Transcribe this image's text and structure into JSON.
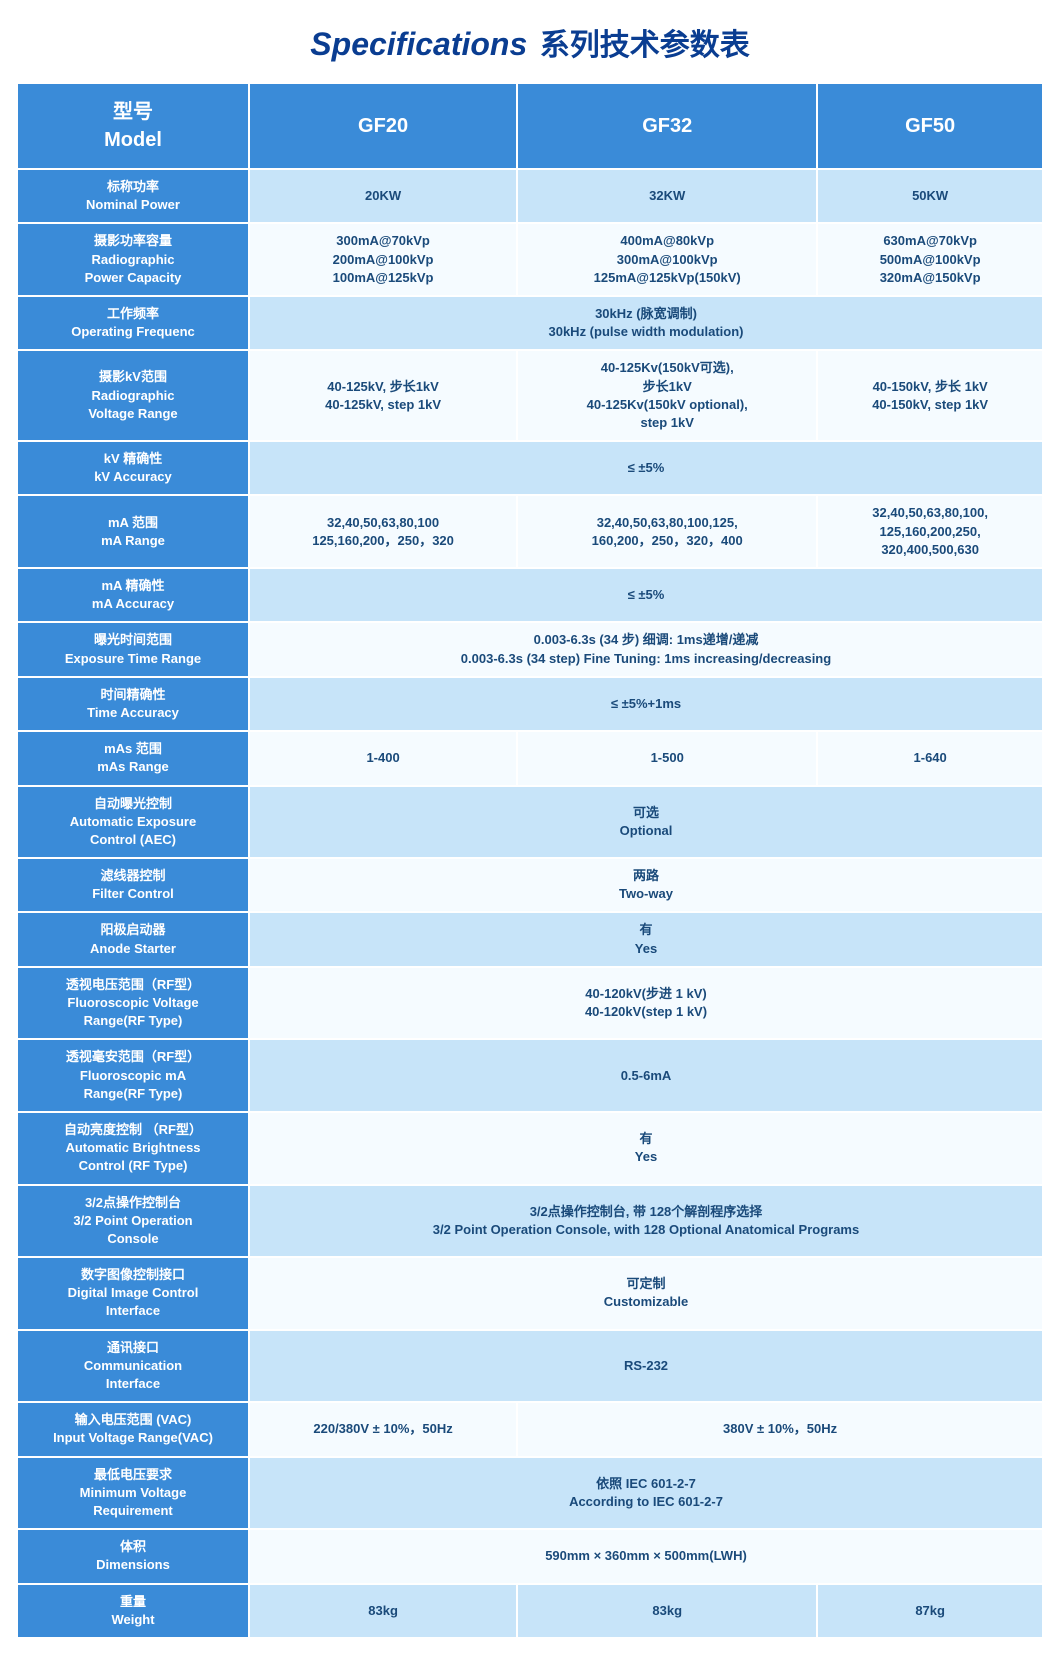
{
  "title_en": "Specifications",
  "title_cn": "系列技术参数表",
  "colors": {
    "header_bg": "#3a8bd8",
    "cell_light": "#c7e4f9",
    "cell_white": "#f5fbff",
    "text_dark": "#1a4a7a",
    "title_color": "#0a3d91"
  },
  "header": {
    "model_label": "型号\nModel",
    "col1": "GF20",
    "col2": "GF32",
    "col3": "GF50"
  },
  "rows": [
    {
      "label": "标称功率\nNominal Power",
      "style": "light",
      "cells": [
        "20KW",
        "32KW",
        "50KW"
      ]
    },
    {
      "label": "摄影功率容量\nRadiographic\nPower Capacity",
      "style": "white",
      "cells": [
        "300mA@70kVp\n200mA@100kVp\n100mA@125kVp",
        "400mA@80kVp\n300mA@100kVp\n125mA@125kVp(150kV)",
        "630mA@70kVp\n500mA@100kVp\n320mA@150kVp"
      ]
    },
    {
      "label": "工作频率\nOperating Frequenc",
      "style": "light",
      "span": 3,
      "cells": [
        "30kHz (脉宽调制)\n30kHz (pulse width modulation)"
      ]
    },
    {
      "label": "摄影kV范围\nRadiographic\nVoltage Range",
      "style": "white",
      "cells": [
        "40-125kV, 步长1kV\n40-125kV, step 1kV",
        "40-125Kv(150kV可选),\n步长1kV\n40-125Kv(150kV optional),\nstep 1kV",
        "40-150kV, 步长 1kV\n40-150kV, step 1kV"
      ]
    },
    {
      "label": "kV 精确性\nkV Accuracy",
      "style": "light",
      "span": 3,
      "cells": [
        "≤ ±5%"
      ]
    },
    {
      "label": "mA 范围\nmA Range",
      "style": "white",
      "cells": [
        "32,40,50,63,80,100\n125,160,200，250，320",
        "32,40,50,63,80,100,125,\n160,200，250，320，400",
        "32,40,50,63,80,100,\n125,160,200,250,\n320,400,500,630"
      ]
    },
    {
      "label": "mA 精确性\nmA Accuracy",
      "style": "light",
      "span": 3,
      "cells": [
        "≤ ±5%"
      ]
    },
    {
      "label": "曝光时间范围\nExposure Time Range",
      "style": "white",
      "span": 3,
      "cells": [
        "0.003-6.3s (34 步) 细调: 1ms递增/递减\n0.003-6.3s (34 step) Fine Tuning: 1ms increasing/decreasing"
      ]
    },
    {
      "label": "时间精确性\nTime Accuracy",
      "style": "light",
      "span": 3,
      "cells": [
        "≤ ±5%+1ms"
      ]
    },
    {
      "label": "mAs 范围\nmAs Range",
      "style": "white",
      "cells": [
        "1-400",
        "1-500",
        "1-640"
      ]
    },
    {
      "label": "自动曝光控制\nAutomatic Exposure\nControl (AEC)",
      "style": "light",
      "span": 3,
      "cells": [
        "可选\nOptional"
      ]
    },
    {
      "label": "滤线器控制\nFilter Control",
      "style": "white",
      "span": 3,
      "cells": [
        "两路\nTwo-way"
      ]
    },
    {
      "label": "阳极启动器\nAnode Starter",
      "style": "light",
      "span": 3,
      "cells": [
        "有\nYes"
      ]
    },
    {
      "label": "透视电压范围（RF型）\nFluoroscopic Voltage\nRange(RF Type)",
      "style": "white",
      "span": 3,
      "cells": [
        "40-120kV(步进 1 kV)\n40-120kV(step 1 kV)"
      ]
    },
    {
      "label": "透视毫安范围（RF型）\nFluoroscopic mA\nRange(RF Type)",
      "style": "light",
      "span": 3,
      "cells": [
        "0.5-6mA"
      ]
    },
    {
      "label": "自动亮度控制 （RF型）\nAutomatic Brightness\nControl (RF Type)",
      "style": "white",
      "span": 3,
      "cells": [
        "有\nYes"
      ]
    },
    {
      "label": "3/2点操作控制台\n3/2 Point Operation\nConsole",
      "style": "light",
      "span": 3,
      "cells": [
        "3/2点操作控制台, 带 128个解剖程序选择\n3/2 Point Operation Console, with 128 Optional Anatomical Programs"
      ]
    },
    {
      "label": "数字图像控制接口\nDigital Image Control\nInterface",
      "style": "white",
      "span": 3,
      "cells": [
        "可定制\nCustomizable"
      ]
    },
    {
      "label": "通讯接口\nCommunication\nInterface",
      "style": "light",
      "span": 3,
      "cells": [
        "RS-232"
      ]
    },
    {
      "label": "输入电压范围 (VAC)\nInput Voltage Range(VAC)",
      "style": "white",
      "spanSplit": [
        1,
        2
      ],
      "cells": [
        "220/380V ± 10%，50Hz",
        "380V ± 10%，50Hz"
      ]
    },
    {
      "label": "最低电压要求\nMinimum Voltage\nRequirement",
      "style": "light",
      "span": 3,
      "cells": [
        "依照 IEC 601-2-7\nAccording to IEC 601-2-7"
      ]
    },
    {
      "label": "体积\nDimensions",
      "style": "white",
      "span": 3,
      "cells": [
        "590mm × 360mm × 500mm(LWH)"
      ]
    },
    {
      "label": "重量\nWeight",
      "style": "light",
      "cells": [
        "83kg",
        "83kg",
        "87kg"
      ]
    }
  ]
}
